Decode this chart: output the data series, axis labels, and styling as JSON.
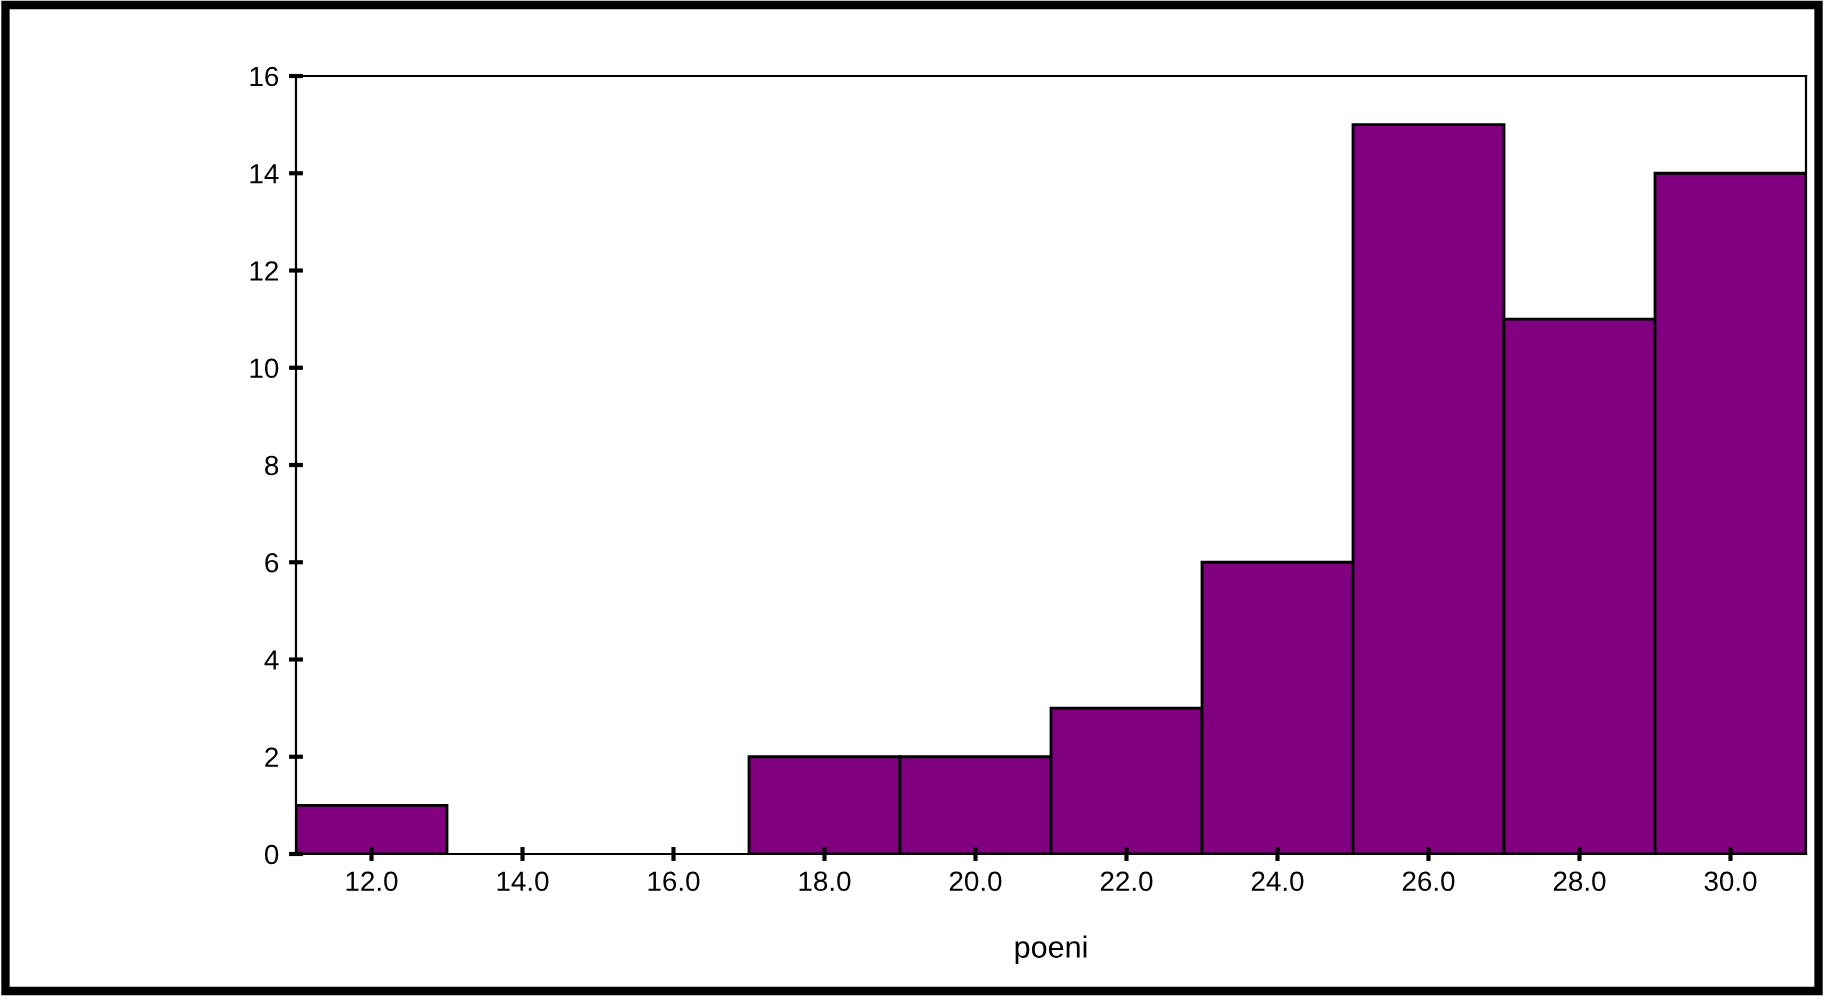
{
  "chart_data": {
    "type": "histogram",
    "xlabel": "poeni",
    "bins": [
      11,
      13,
      15,
      17,
      19,
      21,
      23,
      25,
      27,
      29,
      31
    ],
    "values": [
      1,
      0,
      0,
      2,
      2,
      3,
      6,
      15,
      11,
      14
    ],
    "color": "#800080",
    "xlim": [
      11,
      31
    ],
    "xticks": [
      {
        "value": 12,
        "label": "12.0"
      },
      {
        "value": 14,
        "label": "14.0"
      },
      {
        "value": 16,
        "label": "16.0"
      },
      {
        "value": 18,
        "label": "18.0"
      },
      {
        "value": 20,
        "label": "20.0"
      },
      {
        "value": 22,
        "label": "22.0"
      },
      {
        "value": 24,
        "label": "24.0"
      },
      {
        "value": 26,
        "label": "26.0"
      },
      {
        "value": 28,
        "label": "28.0"
      },
      {
        "value": 30,
        "label": "30.0"
      }
    ],
    "ylim": [
      0,
      16
    ],
    "yticks": [
      0,
      2,
      4,
      6,
      8,
      10,
      12,
      14,
      16
    ],
    "grid": false
  }
}
